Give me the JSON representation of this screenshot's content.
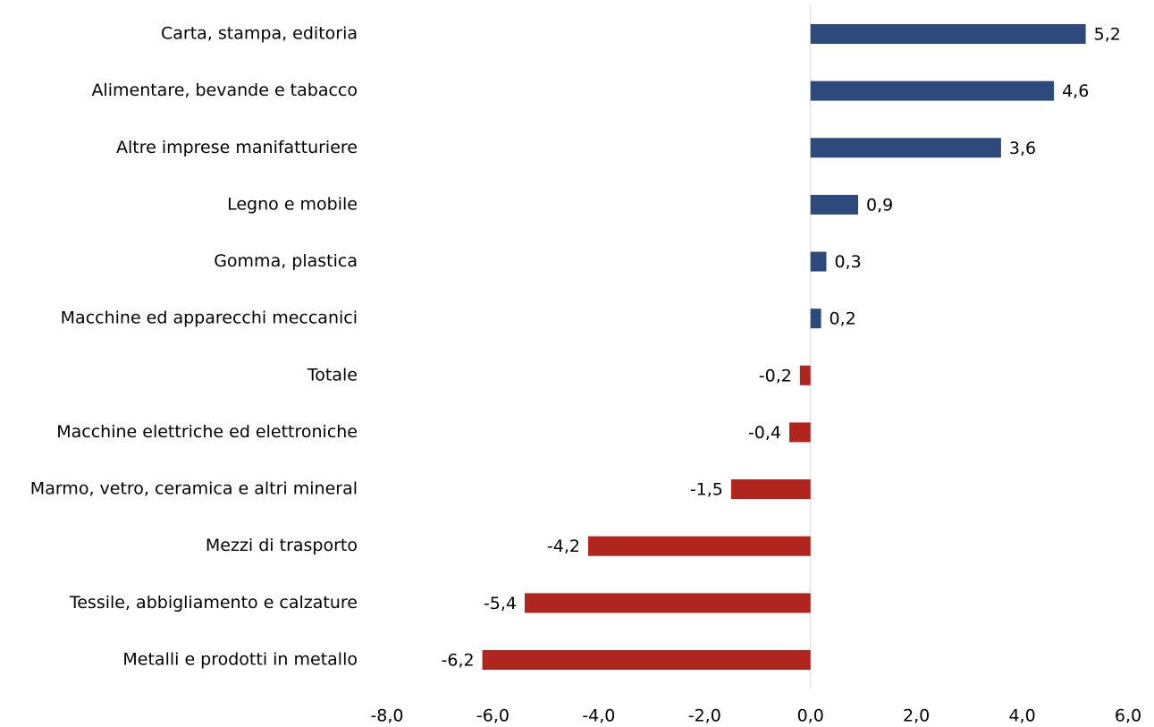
{
  "chart_data": {
    "type": "hbar",
    "categories": [
      "Carta, stampa, editoria",
      "Alimentare, bevande e tabacco",
      "Altre imprese manifatturiere",
      "Legno e mobile",
      "Gomma, plastica",
      "Macchine ed apparecchi meccanici",
      "Totale",
      "Macchine elettriche ed elettroniche",
      "Marmo, vetro, ceramica e altri mineral",
      "Mezzi di trasporto",
      "Tessile, abbigliamento e calzature",
      "Metalli e prodotti in metallo"
    ],
    "values": [
      5.2,
      4.6,
      3.6,
      0.9,
      0.3,
      0.2,
      -0.2,
      -0.4,
      -1.5,
      -4.2,
      -5.4,
      -6.2
    ],
    "value_labels": [
      "5,2",
      "4,6",
      "3,6",
      "0,9",
      "0,3",
      "0,2",
      "-0,2",
      "-0,4",
      "-1,5",
      "-4,2",
      "-5,4",
      "-6,2"
    ],
    "color_positive": "#2e4a7d",
    "color_negative": "#b0261e",
    "xlim": [
      -8,
      6
    ],
    "xticks": [
      {
        "value": -8,
        "label": "-8,0"
      },
      {
        "value": -6,
        "label": "-6,0"
      },
      {
        "value": -4,
        "label": "-4,0"
      },
      {
        "value": -2,
        "label": "-2,0"
      },
      {
        "value": 0,
        "label": "0,0"
      },
      {
        "value": 2,
        "label": "2,0"
      },
      {
        "value": 4,
        "label": "4,0"
      },
      {
        "value": 6,
        "label": "6,0"
      }
    ]
  }
}
